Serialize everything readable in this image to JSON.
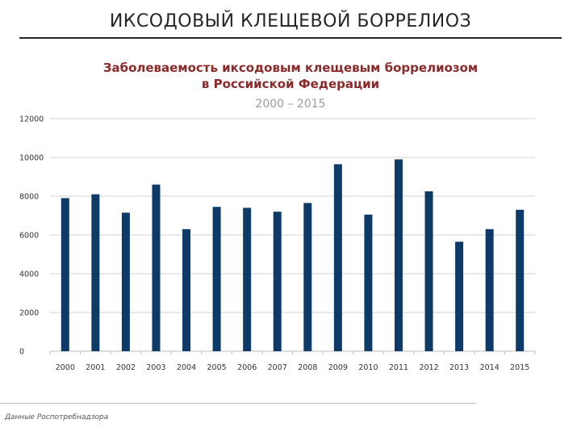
{
  "slide": {
    "title": "ИКСОДОВЫЙ КЛЕЩЕВОЙ БОРРЕЛИОЗ",
    "source_note": "Данные Роспотребнадзора"
  },
  "chart_data": {
    "type": "bar",
    "title_line1": "Заболеваемость иксодовым клещевым боррелиозом",
    "title_line2": "в Российской Федерации",
    "subtitle": "2000 – 2015",
    "xlabel": "",
    "ylabel": "",
    "categories": [
      "2000",
      "2001",
      "2002",
      "2003",
      "2004",
      "2005",
      "2006",
      "2007",
      "2008",
      "2009",
      "2010",
      "2011",
      "2012",
      "2013",
      "2014",
      "2015"
    ],
    "values": [
      7900,
      8100,
      7150,
      8600,
      6300,
      7450,
      7400,
      7200,
      7650,
      9650,
      7050,
      9900,
      8250,
      5650,
      6300,
      7300
    ],
    "ylim": [
      0,
      12000
    ],
    "yticks": [
      0,
      2000,
      4000,
      6000,
      8000,
      10000,
      12000
    ],
    "grid": true,
    "legend": "none",
    "colors": {
      "bar": "#0d3a66",
      "grid": "#d0d0d0",
      "axis": "#bfbfbf"
    }
  }
}
